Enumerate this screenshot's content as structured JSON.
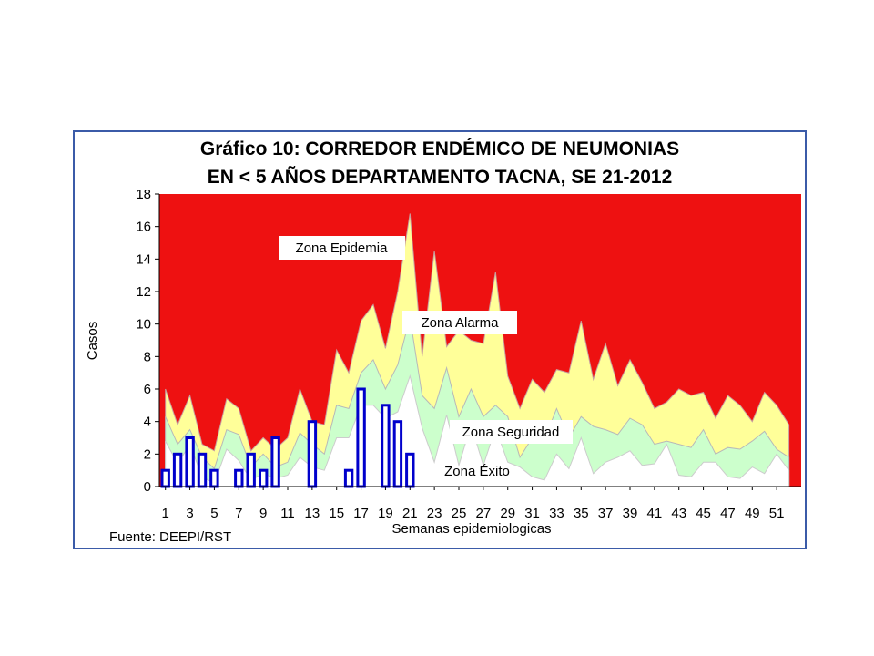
{
  "chart_data": {
    "type": "area",
    "title_line1": "Gráfico 10: CORREDOR ENDÉMICO DE NEUMONIAS",
    "title_line2": "EN < 5 AÑOS  DEPARTAMENTO TACNA,  SE 21-2012",
    "xlabel": "Semanas epidemiologicas",
    "ylabel": "Casos",
    "source": "Fuente:  DEEPI/RST",
    "ylim": [
      0,
      18
    ],
    "yticks": [
      0,
      2,
      4,
      6,
      8,
      10,
      12,
      14,
      16,
      18
    ],
    "xlim": [
      0.5,
      53
    ],
    "xticks": [
      1,
      3,
      5,
      7,
      9,
      11,
      13,
      15,
      17,
      19,
      21,
      23,
      25,
      27,
      29,
      31,
      33,
      35,
      37,
      39,
      41,
      43,
      45,
      47,
      49,
      51
    ],
    "weeks": [
      1,
      2,
      3,
      4,
      5,
      6,
      7,
      8,
      9,
      10,
      11,
      12,
      13,
      14,
      15,
      16,
      17,
      18,
      19,
      20,
      21,
      22,
      23,
      24,
      25,
      26,
      27,
      28,
      29,
      30,
      31,
      32,
      33,
      34,
      35,
      36,
      37,
      38,
      39,
      40,
      41,
      42,
      43,
      44,
      45,
      46,
      47,
      48,
      49,
      50,
      51,
      52
    ],
    "zones": [
      {
        "name": "Zona Epidemia",
        "color": "#ee1111"
      },
      {
        "name": "Zona Alarma",
        "color": "#ffff99"
      },
      {
        "name": "Zona Seguridad",
        "color": "#ccffcc"
      },
      {
        "name": "Zona Éxito",
        "color": "#ffffff"
      }
    ],
    "q3_upper": [
      6,
      3.8,
      5.6,
      2.6,
      2.2,
      5.4,
      4.8,
      2.2,
      3,
      2.3,
      3,
      6,
      4,
      3.8,
      8.4,
      7,
      10.2,
      11.2,
      8.5,
      12,
      16.8,
      8,
      14.5,
      8.6,
      9.6,
      9,
      8.8,
      13.2,
      6.8,
      4.8,
      6.6,
      5.8,
      7.2,
      7,
      10.2,
      6.6,
      8.8,
      6.2,
      7.8,
      6.4,
      4.8,
      5.2,
      6,
      5.6,
      5.8,
      4.2,
      5.6,
      5,
      4,
      5.8,
      5,
      3.8
    ],
    "median": [
      4.3,
      2.6,
      3.5,
      1.8,
      1.1,
      3.5,
      3.2,
      1.2,
      2,
      1.2,
      1.5,
      3.3,
      2.6,
      2,
      5,
      4.8,
      7,
      7.8,
      6,
      7.5,
      10.4,
      5.6,
      4.8,
      7.3,
      4.3,
      6,
      4.3,
      5,
      4.3,
      1.8,
      3,
      2.9,
      4.8,
      3,
      4.3,
      3.7,
      3.5,
      3.2,
      4.2,
      3.8,
      2.6,
      2.8,
      2.6,
      2.4,
      3.5,
      2,
      2.4,
      2.3,
      2.8,
      3.4,
      2.3,
      1.8
    ],
    "q1_lower": [
      2.8,
      1.4,
      2.6,
      0.6,
      0.2,
      2.3,
      1.6,
      0.4,
      0.8,
      0.5,
      0.7,
      1.8,
      1.2,
      1,
      3,
      3,
      5,
      5,
      4.2,
      4.6,
      6.8,
      3.6,
      1.5,
      4.4,
      1.3,
      3.8,
      1.3,
      3.6,
      1.5,
      1.2,
      0.6,
      0.4,
      2,
      1.1,
      3,
      0.8,
      1.5,
      1.8,
      2.2,
      1.3,
      1.4,
      2.6,
      0.7,
      0.6,
      1.5,
      1.5,
      0.6,
      0.5,
      1.2,
      0.8,
      2,
      1
    ],
    "series": [
      {
        "name": "2012",
        "color": "#0000cc",
        "values": [
          1,
          2,
          3,
          2,
          1,
          0,
          1,
          2,
          1,
          3,
          0,
          0,
          4,
          0,
          0,
          1,
          6,
          0,
          5,
          4,
          2
        ]
      }
    ]
  }
}
